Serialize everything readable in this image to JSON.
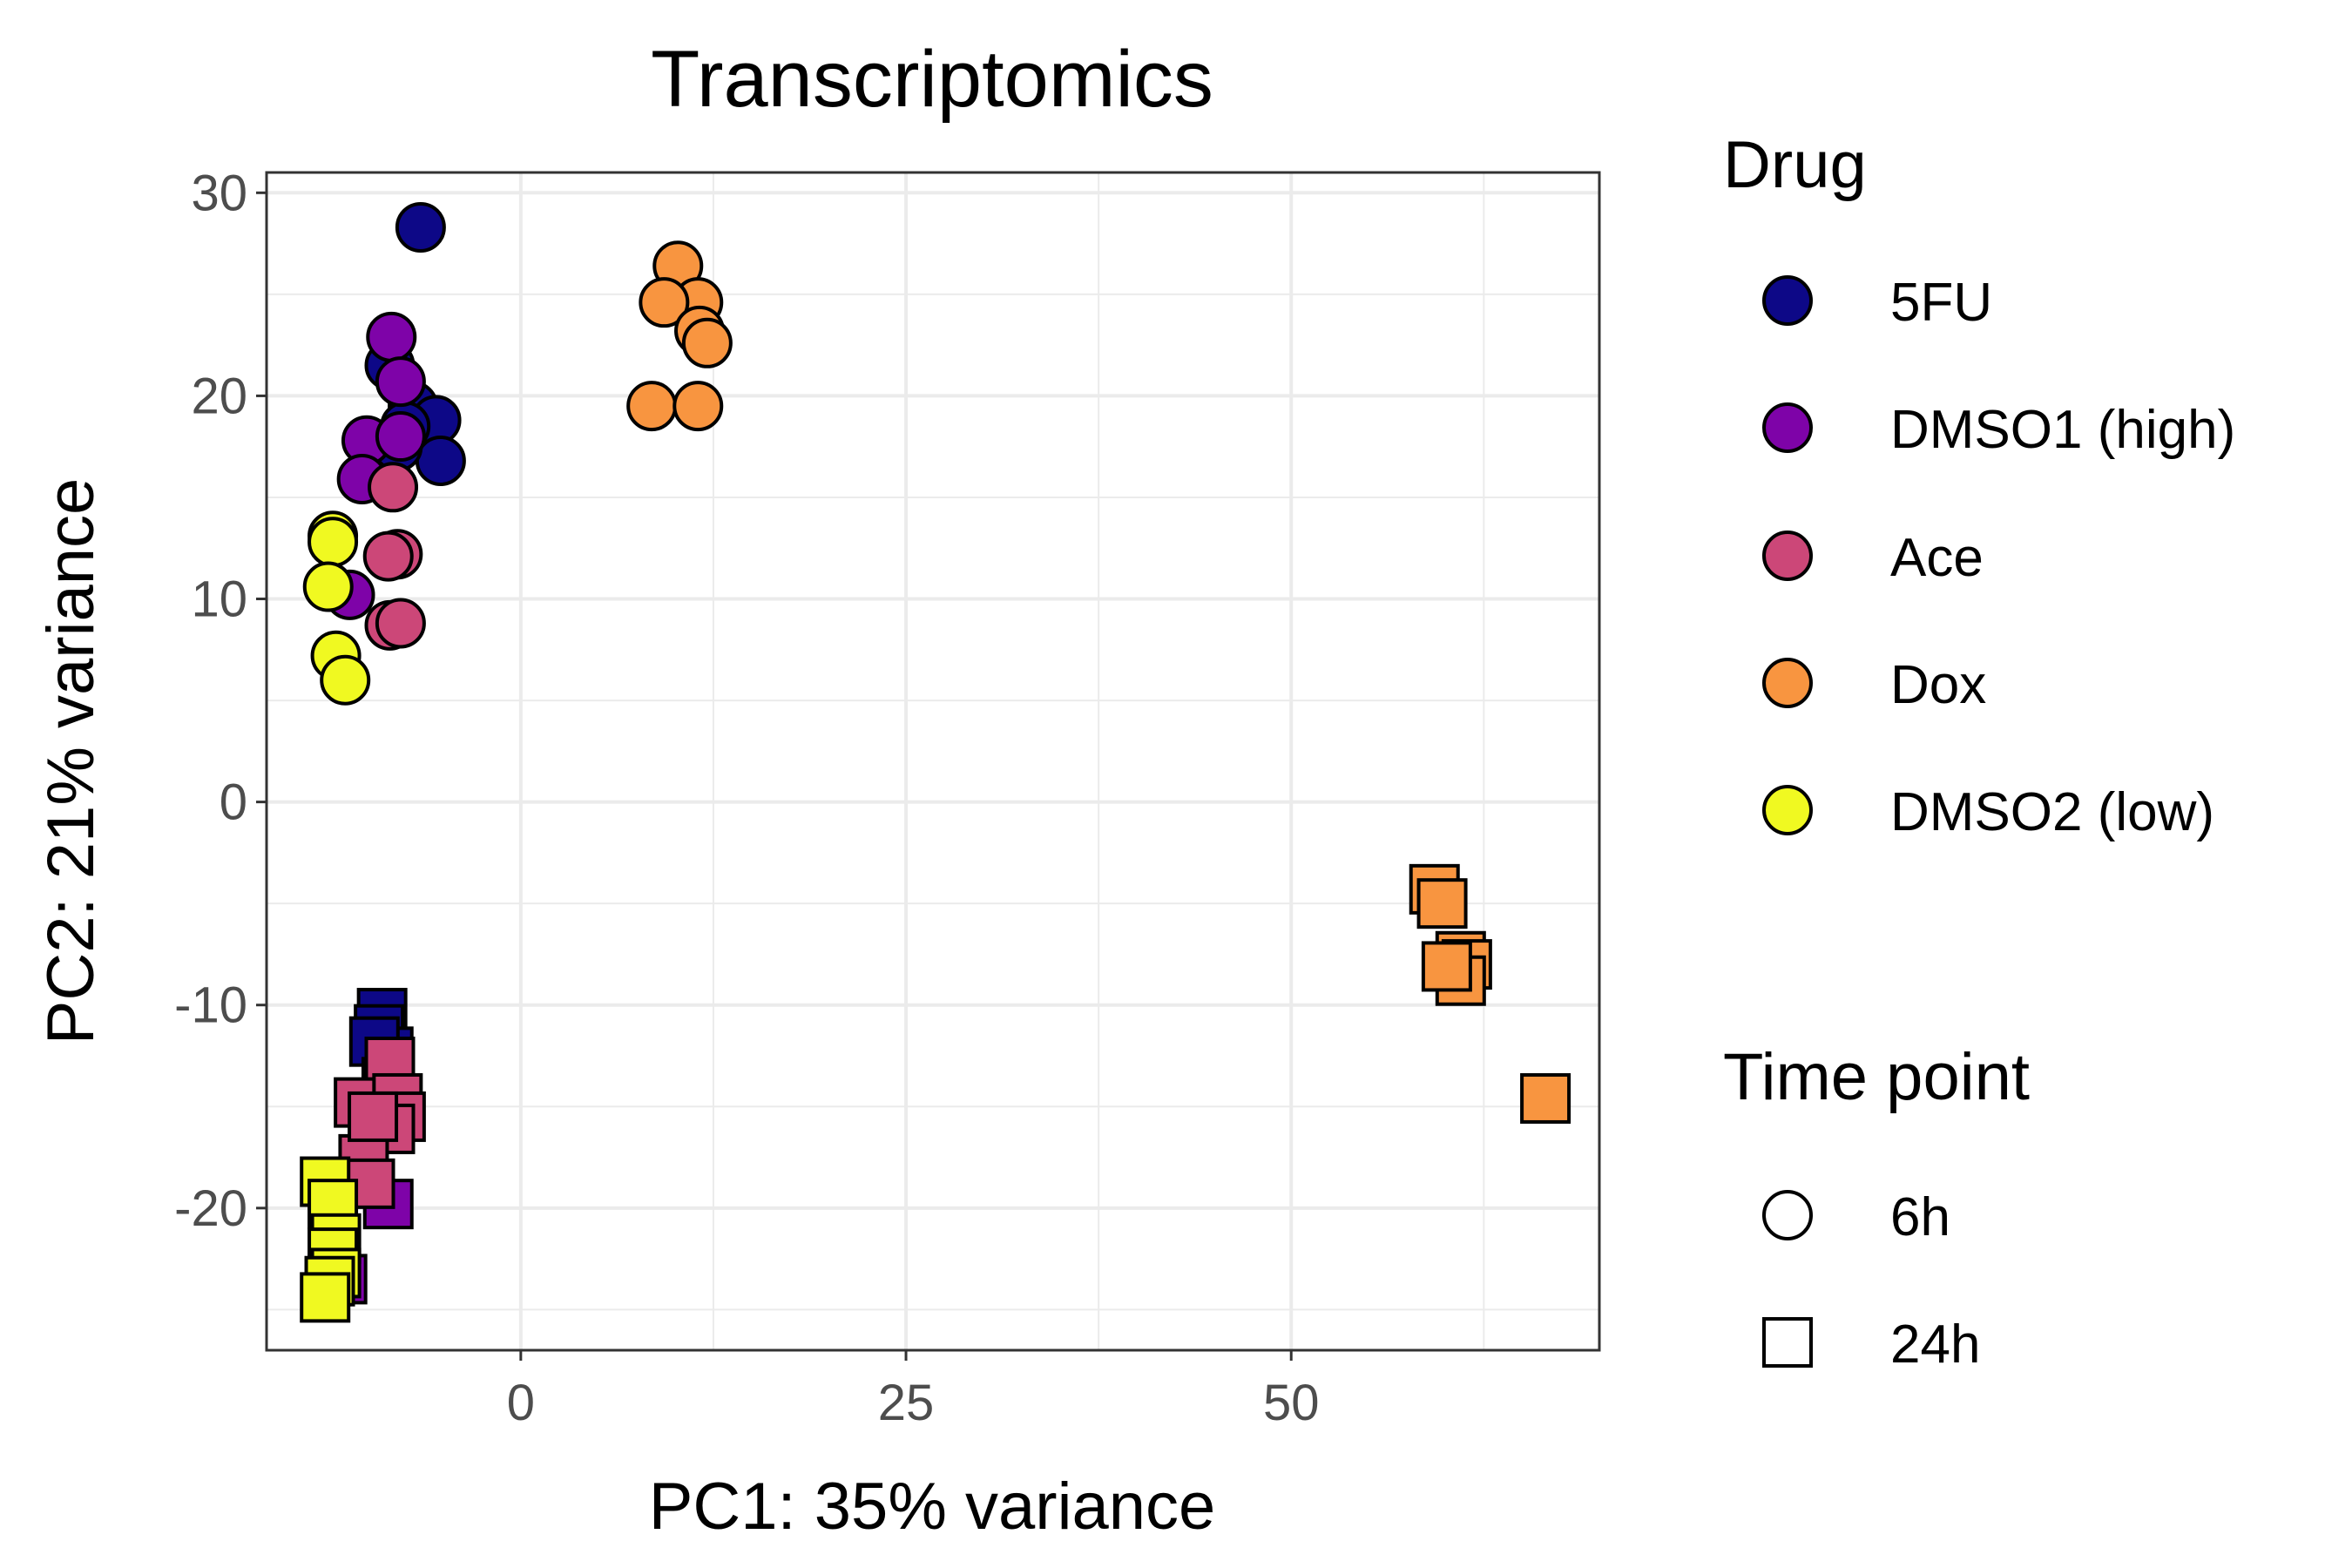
{
  "chart_data": {
    "type": "scatter",
    "title": "Transcriptomics",
    "xlabel": "PC1: 35% variance",
    "ylabel": "PC2: 21% variance",
    "xlim": [
      -16.5,
      70
    ],
    "ylim": [
      -27,
      31
    ],
    "xticks": [
      0,
      25,
      50
    ],
    "yticks": [
      -20,
      -10,
      0,
      10,
      20,
      30
    ],
    "xtick_labels": [
      "0",
      "25",
      "50"
    ],
    "ytick_labels": [
      "-20",
      "-10",
      "0",
      "10",
      "20",
      "30"
    ],
    "grid": true,
    "legend_position": "right",
    "drug_legend": {
      "title": "Drug",
      "items": [
        {
          "key": "5FU",
          "label": "5FU",
          "color": "#0d0887"
        },
        {
          "key": "DMSO1",
          "label": "DMSO1 (high)",
          "color": "#7e03a8"
        },
        {
          "key": "Ace",
          "label": "Ace",
          "color": "#cc4778"
        },
        {
          "key": "Dox",
          "label": "Dox",
          "color": "#f89540"
        },
        {
          "key": "DMSO2",
          "label": "DMSO2 (low)",
          "color": "#f0f921"
        }
      ]
    },
    "time_legend": {
      "title": "Time point",
      "items": [
        {
          "key": "6h",
          "label": "6h",
          "shape": "circle"
        },
        {
          "key": "24h",
          "label": "24h",
          "shape": "square"
        }
      ]
    },
    "series": [
      {
        "drug": "5FU",
        "time": "6h",
        "points": [
          [
            -6.5,
            28.3
          ],
          [
            -8.5,
            21.5
          ],
          [
            -7,
            19.5
          ],
          [
            -5.5,
            18.8
          ],
          [
            -5.2,
            16.8
          ],
          [
            -8,
            17.5
          ],
          [
            -7.5,
            18.5
          ]
        ]
      },
      {
        "drug": "DMSO1",
        "time": "6h",
        "points": [
          [
            -8.4,
            22.9
          ],
          [
            -7.8,
            20.7
          ],
          [
            -10,
            17.8
          ],
          [
            -7.8,
            18
          ],
          [
            -10.3,
            15.9
          ],
          [
            -11.1,
            10.2
          ]
        ]
      },
      {
        "drug": "Ace",
        "time": "6h",
        "points": [
          [
            -8.3,
            15.5
          ],
          [
            -8,
            12.2
          ],
          [
            -8.6,
            12.1
          ],
          [
            -8.5,
            8.7
          ],
          [
            -7.8,
            8.8
          ]
        ]
      },
      {
        "drug": "Dox",
        "time": "6h",
        "points": [
          [
            10.2,
            26.4
          ],
          [
            11.5,
            24.6
          ],
          [
            9.3,
            24.6
          ],
          [
            11.6,
            23.2
          ],
          [
            12.1,
            22.6
          ],
          [
            8.5,
            19.5
          ],
          [
            11.5,
            19.5
          ]
        ]
      },
      {
        "drug": "DMSO2",
        "time": "6h",
        "points": [
          [
            -12.2,
            13.1
          ],
          [
            -12.2,
            12.8
          ],
          [
            -12.5,
            10.6
          ],
          [
            -12,
            7.2
          ],
          [
            -11.4,
            6
          ]
        ]
      },
      {
        "drug": "5FU",
        "time": "24h",
        "points": [
          [
            -9,
            -10.4
          ],
          [
            -9.2,
            -11.2
          ],
          [
            -8.6,
            -12.3
          ],
          [
            -9.5,
            -11.8
          ],
          [
            -8.7,
            -13.8
          ]
        ]
      },
      {
        "drug": "DMSO1",
        "time": "24h",
        "points": [
          [
            -8.4,
            -14.8
          ],
          [
            -8.6,
            -19.8
          ],
          [
            -11.6,
            -23.5
          ]
        ]
      },
      {
        "drug": "Ace",
        "time": "24h",
        "points": [
          [
            -8.5,
            -12.8
          ],
          [
            -10.5,
            -14.8
          ],
          [
            -8,
            -14.6
          ],
          [
            -7.8,
            -15.5
          ],
          [
            -8.5,
            -16.1
          ],
          [
            -10.2,
            -17.6
          ],
          [
            -9.8,
            -18.8
          ],
          [
            -9.6,
            -15.5
          ]
        ]
      },
      {
        "drug": "Dox",
        "time": "24h",
        "points": [
          [
            59.3,
            -4.3
          ],
          [
            59.8,
            -5
          ],
          [
            61,
            -7.6
          ],
          [
            61.4,
            -8
          ],
          [
            61,
            -8.8
          ],
          [
            60.1,
            -8.1
          ],
          [
            66.5,
            -14.6
          ]
        ]
      },
      {
        "drug": "DMSO2",
        "time": "24h",
        "points": [
          [
            -12.7,
            -18.7
          ],
          [
            -12.2,
            -19.8
          ],
          [
            -12,
            -21.5
          ],
          [
            -12.2,
            -22.2
          ],
          [
            -12,
            -23.2
          ],
          [
            -12.4,
            -23.6
          ],
          [
            -12.7,
            -24.4
          ]
        ]
      }
    ]
  }
}
